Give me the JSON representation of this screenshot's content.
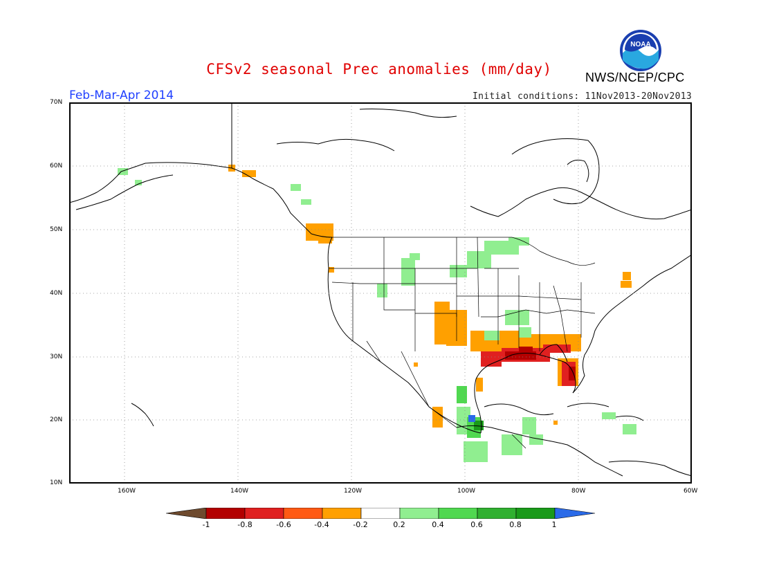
{
  "header": {
    "title": "CFSv2 seasonal Prec anomalies (mm/day)",
    "period": "Feb-Mar-Apr 2014",
    "initial_conditions": "Initial conditions: 11Nov2013-20Nov2013",
    "agency": "NWS/NCEP/CPC",
    "logo_text": "NOAA"
  },
  "axes": {
    "latitude_labels": [
      "70N",
      "60N",
      "50N",
      "40N",
      "30N",
      "20N",
      "10N"
    ],
    "longitude_labels": [
      "160W",
      "140W",
      "120W",
      "100W",
      "80W",
      "60W"
    ]
  },
  "colorbar": {
    "labels": [
      "-1",
      "-0.8",
      "-0.6",
      "-0.4",
      "-0.2",
      "0.2",
      "0.4",
      "0.6",
      "0.8",
      "1"
    ],
    "colors": [
      "#6e4a2e",
      "#b30000",
      "#e02020",
      "#ff5a14",
      "#ffa000",
      "#ffffff",
      "#90ee90",
      "#50d850",
      "#30b030",
      "#1a9a1a",
      "#2a6ae8"
    ]
  },
  "colors": {
    "title": "#e00000",
    "period": "#2040ff",
    "dry_moderate": "#ffa000",
    "dry_strong": "#e02020",
    "dry_extreme": "#b30000",
    "wet_light": "#90ee90",
    "wet_moderate": "#50d850",
    "wet_strong": "#1a9a1a",
    "wet_extreme": "#2a6ae8"
  }
}
